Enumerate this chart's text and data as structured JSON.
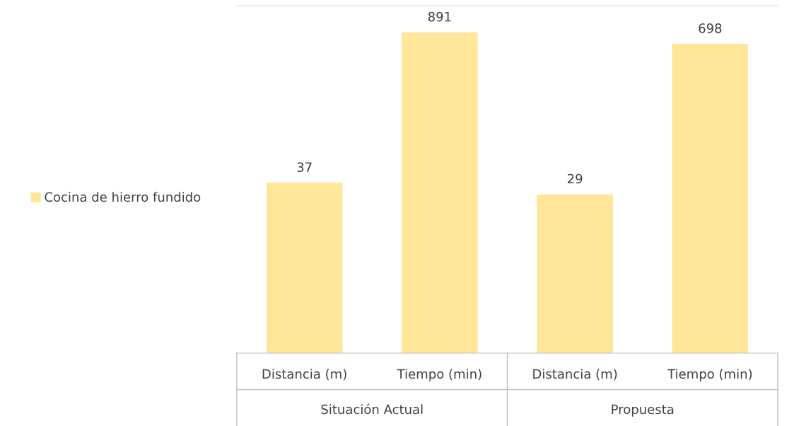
{
  "chart_data": {
    "type": "bar",
    "categories": [
      "Distancia (m)",
      "Tiempo (min)",
      "Distancia (m)",
      "Tiempo (min)"
    ],
    "series": [
      {
        "name": "Cocina de hierro fundido",
        "color": "#ffe699",
        "values": [
          37,
          891,
          29,
          698
        ]
      }
    ],
    "annotations": [
      "Situación Actual",
      "Propuesta"
    ],
    "log": true,
    "ylim": [
      1,
      1550
    ],
    "tick_labels": "x",
    "data_labels": true,
    "legend": "left",
    "grid": false
  }
}
